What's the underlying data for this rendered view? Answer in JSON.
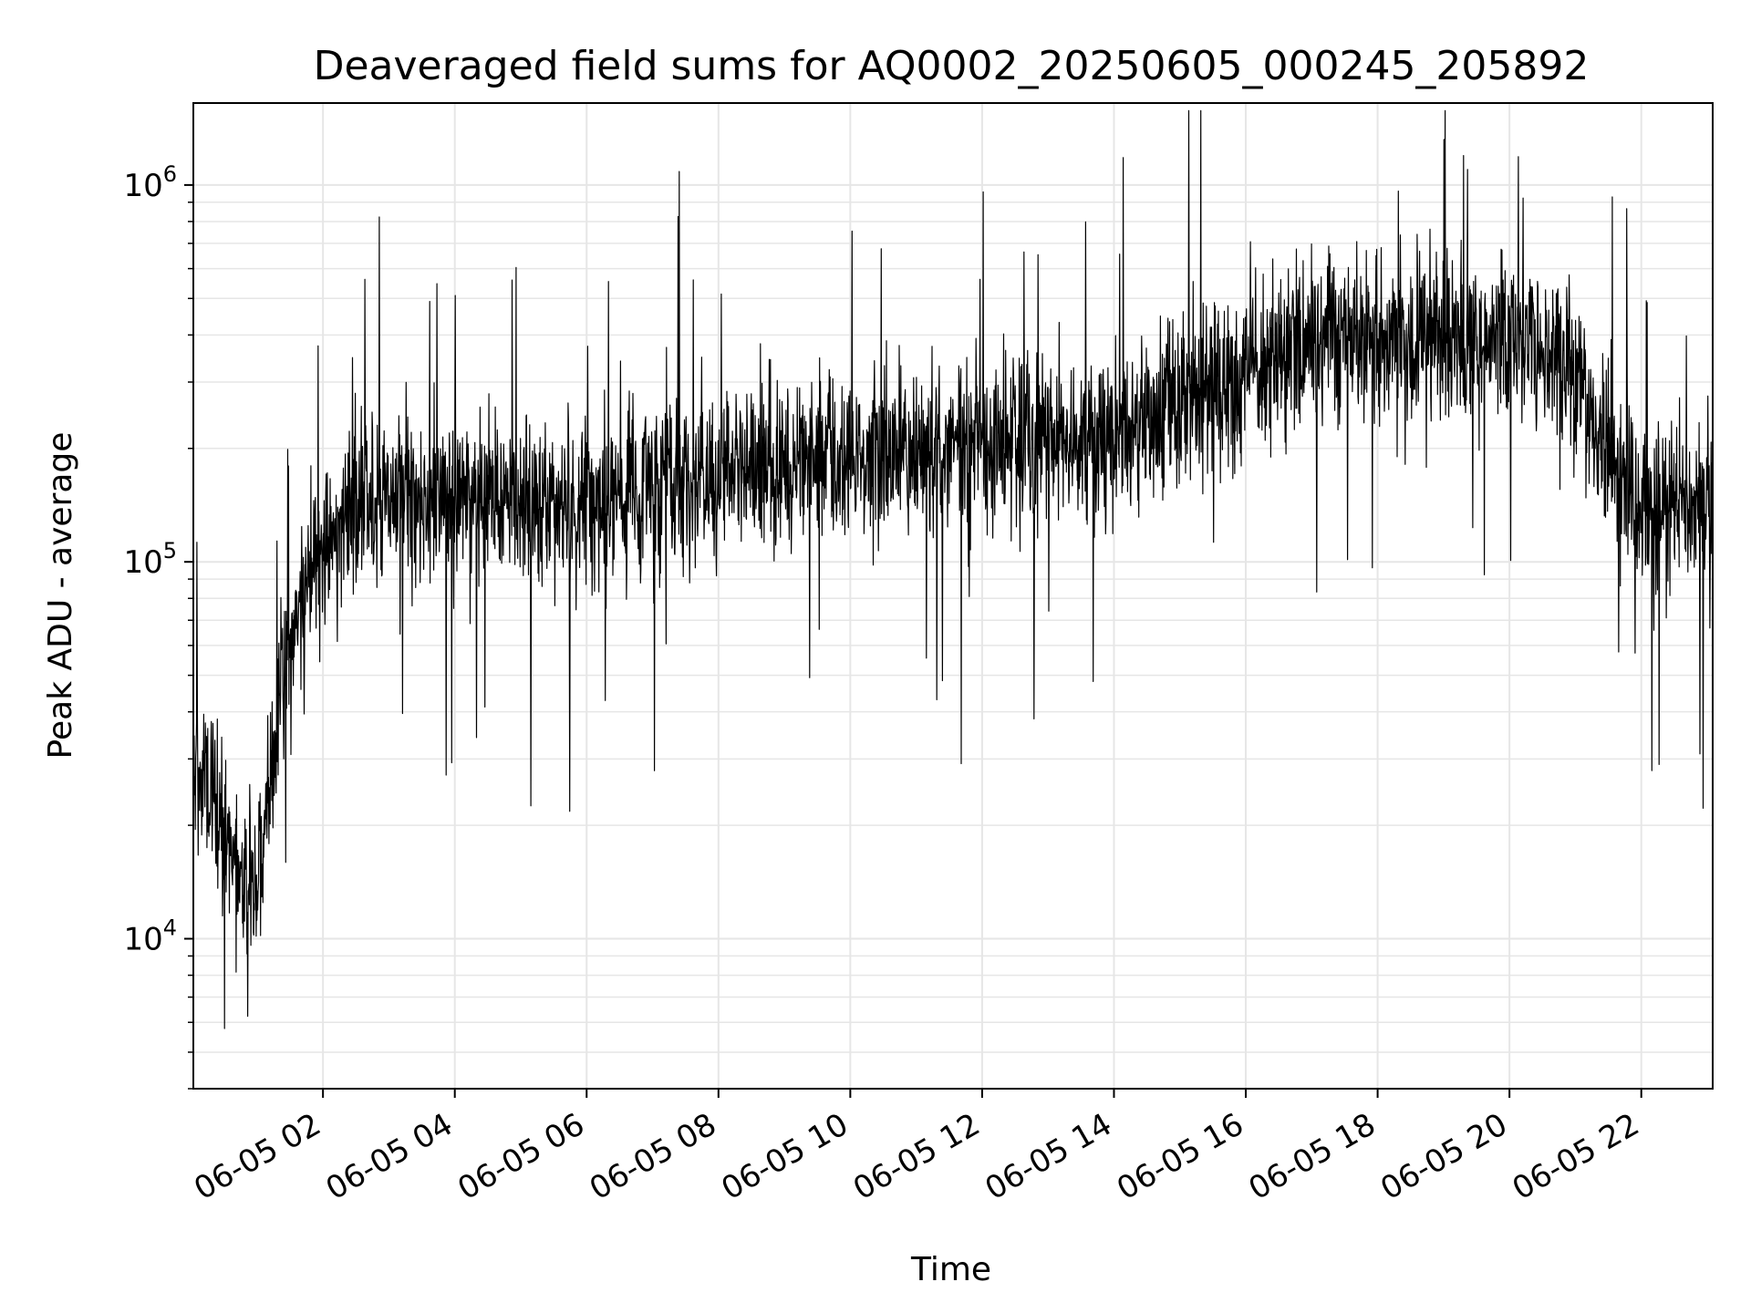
{
  "chart_data": {
    "type": "line",
    "title": "Deaveraged field sums for AQ0002_20250605_000245_205892",
    "xlabel": "Time",
    "ylabel": "Peak ADU - average",
    "y_scale": "log",
    "ylim": [
      4000,
      1650000
    ],
    "xlim": [
      "2025-06-05 00:02",
      "2025-06-05 23:05"
    ],
    "grid": true,
    "line_color": "#000000",
    "grid_color": "#e6e6e6",
    "y_major_ticks": [
      {
        "value": 10000,
        "base": "10",
        "exp": "4"
      },
      {
        "value": 100000,
        "base": "10",
        "exp": "5"
      },
      {
        "value": 1000000,
        "base": "10",
        "exp": "6"
      }
    ],
    "x_ticks": [
      {
        "value": "2025-06-05 02:00",
        "label": "06-05 02"
      },
      {
        "value": "2025-06-05 04:00",
        "label": "06-05 04"
      },
      {
        "value": "2025-06-05 06:00",
        "label": "06-05 06"
      },
      {
        "value": "2025-06-05 08:00",
        "label": "06-05 08"
      },
      {
        "value": "2025-06-05 10:00",
        "label": "06-05 10"
      },
      {
        "value": "2025-06-05 12:00",
        "label": "06-05 12"
      },
      {
        "value": "2025-06-05 14:00",
        "label": "06-05 14"
      },
      {
        "value": "2025-06-05 16:00",
        "label": "06-05 16"
      },
      {
        "value": "2025-06-05 18:00",
        "label": "06-05 18"
      },
      {
        "value": "2025-06-05 20:00",
        "label": "06-05 20"
      },
      {
        "value": "2025-06-05 22:00",
        "label": "06-05 22"
      }
    ],
    "series": [
      {
        "x": [
          "2025-06-05 00:02",
          "2025-06-05 00:20",
          "2025-06-05 00:40",
          "2025-06-05 01:00",
          "2025-06-05 01:20",
          "2025-06-05 01:40",
          "2025-06-05 02:00",
          "2025-06-05 02:30",
          "2025-06-05 03:00",
          "2025-06-05 04:00",
          "2025-06-05 05:00",
          "2025-06-05 06:00",
          "2025-06-05 07:00",
          "2025-06-05 08:00",
          "2025-06-05 09:00",
          "2025-06-05 10:00",
          "2025-06-05 11:00",
          "2025-06-05 12:00",
          "2025-06-05 13:00",
          "2025-06-05 14:00",
          "2025-06-05 15:00",
          "2025-06-05 16:00",
          "2025-06-05 17:00",
          "2025-06-05 18:00",
          "2025-06-05 19:00",
          "2025-06-05 20:00",
          "2025-06-05 20:30",
          "2025-06-05 21:00",
          "2025-06-05 21:30",
          "2025-06-05 22:00",
          "2025-06-05 22:30",
          "2025-06-05 23:05"
        ],
        "y": [
          30000,
          25000,
          15000,
          13000,
          40000,
          80000,
          110000,
          140000,
          150000,
          150000,
          145000,
          145000,
          160000,
          170000,
          185000,
          190000,
          200000,
          210000,
          205000,
          210000,
          260000,
          330000,
          380000,
          390000,
          390000,
          380000,
          360000,
          320000,
          200000,
          130000,
          140000,
          150000
        ]
      }
    ]
  }
}
